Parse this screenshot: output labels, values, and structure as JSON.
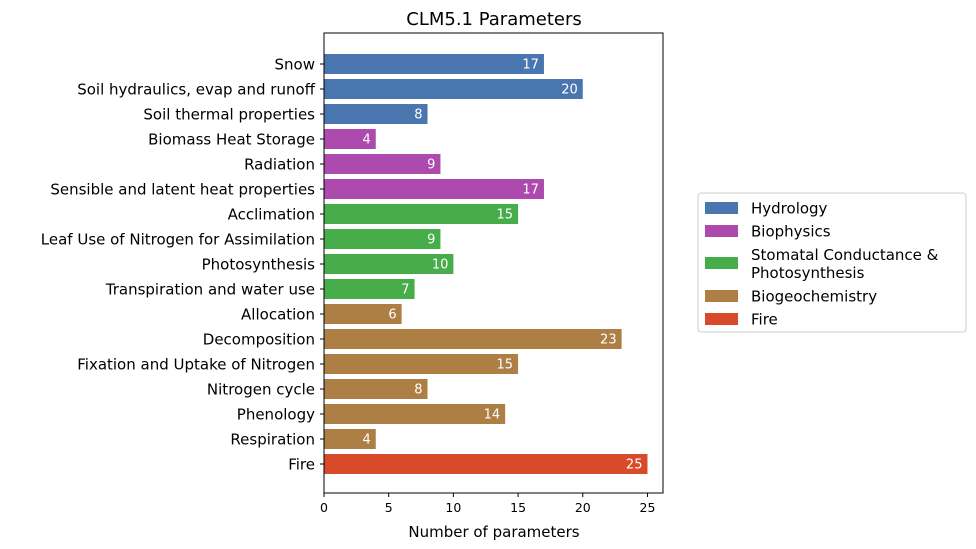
{
  "chart_data": {
    "type": "bar",
    "orientation": "horizontal",
    "title": "CLM5.1 Parameters",
    "xlabel": "Number of parameters",
    "ylabel": "",
    "xlim": [
      0,
      26.2
    ],
    "xticks": [
      0,
      5,
      10,
      15,
      20,
      25
    ],
    "grid": false,
    "legend_position": "right",
    "groups": [
      {
        "name": "Hydrology",
        "color": "#4a76b0"
      },
      {
        "name": "Biophysics",
        "color": "#ad4aad"
      },
      {
        "name": "Stomatal Conductance & Photosynthesis",
        "color": "#47ad4a",
        "legend_lines": [
          "Stomatal Conductance &",
          "Photosynthesis"
        ]
      },
      {
        "name": "Biogeochemistry",
        "color": "#ad7f45"
      },
      {
        "name": "Fire",
        "color": "#d94a2b"
      }
    ],
    "bars": [
      {
        "category": "Snow",
        "value": 17,
        "group": 0
      },
      {
        "category": "Soil hydraulics, evap and runoff",
        "value": 20,
        "group": 0
      },
      {
        "category": "Soil thermal properties",
        "value": 8,
        "group": 0
      },
      {
        "category": "Biomass Heat Storage",
        "value": 4,
        "group": 1
      },
      {
        "category": "Radiation",
        "value": 9,
        "group": 1
      },
      {
        "category": "Sensible and latent heat properties",
        "value": 17,
        "group": 1
      },
      {
        "category": "Acclimation",
        "value": 15,
        "group": 2
      },
      {
        "category": "Leaf Use of Nitrogen for Assimilation",
        "value": 9,
        "group": 2
      },
      {
        "category": "Photosynthesis",
        "value": 10,
        "group": 2
      },
      {
        "category": "Transpiration and water use",
        "value": 7,
        "group": 2
      },
      {
        "category": "Allocation",
        "value": 6,
        "group": 3
      },
      {
        "category": "Decomposition",
        "value": 23,
        "group": 3
      },
      {
        "category": "Fixation and Uptake of Nitrogen",
        "value": 15,
        "group": 3
      },
      {
        "category": "Nitrogen cycle",
        "value": 8,
        "group": 3
      },
      {
        "category": "Phenology",
        "value": 14,
        "group": 3
      },
      {
        "category": "Respiration",
        "value": 4,
        "group": 3
      },
      {
        "category": "Fire",
        "value": 25,
        "group": 4
      }
    ]
  }
}
